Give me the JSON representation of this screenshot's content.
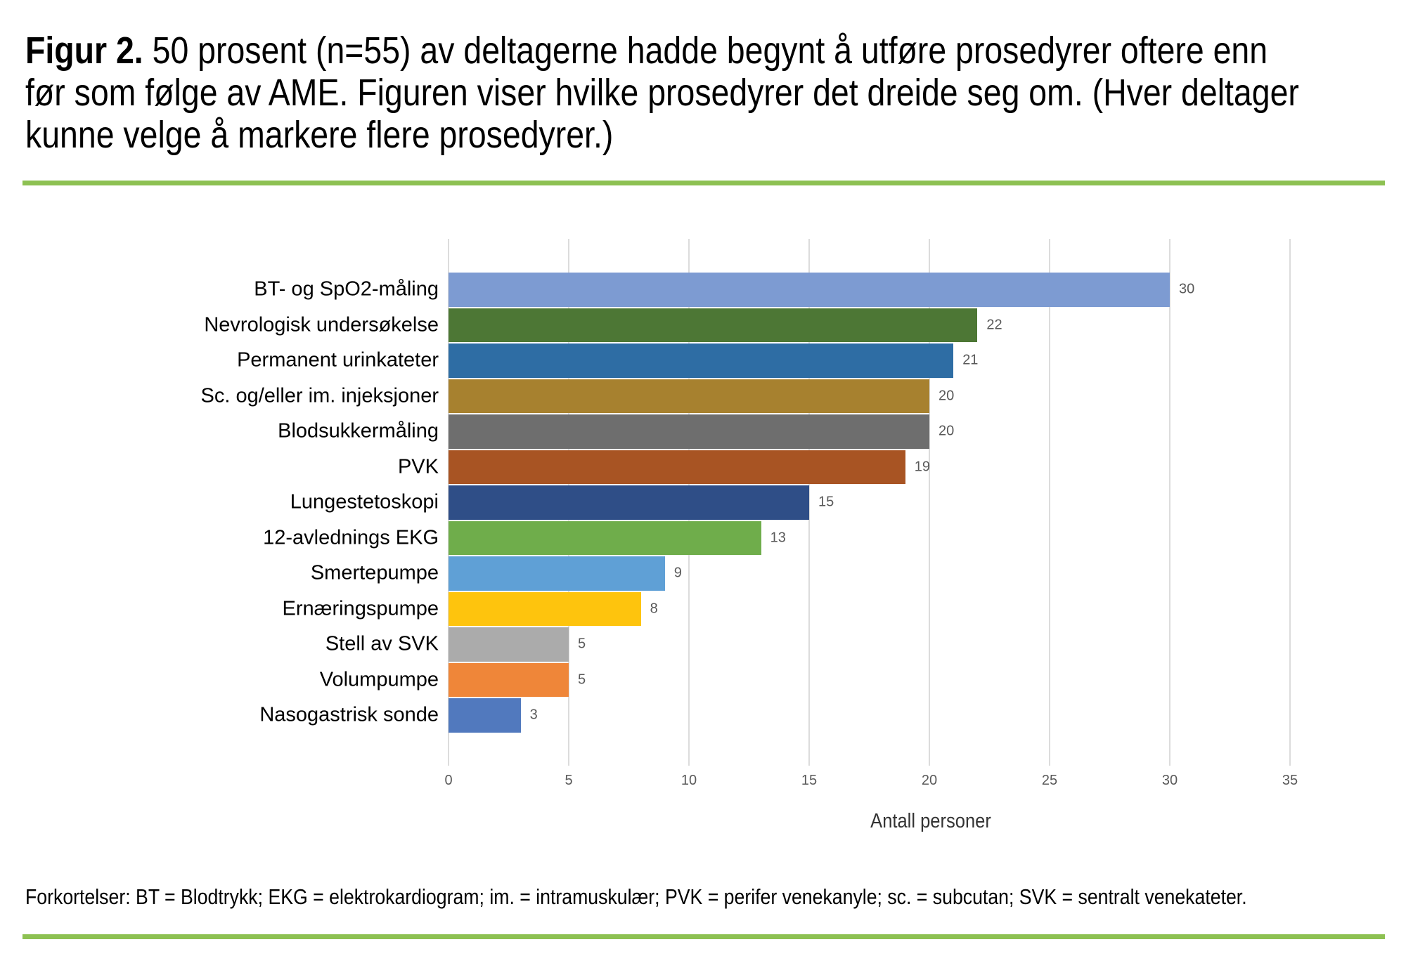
{
  "figure": {
    "caption_label": "Figur 2.",
    "caption_line1": "50 prosent (n=55) av deltagerne hadde begynt å utføre prosedyrer oftere enn",
    "caption_line2": "før som følge av AME. Figuren viser hvilke prosedyrer det dreide seg om. (Hver deltager",
    "caption_line3": "kunne velge å markere flere prosedyrer.)",
    "footnote": "Forkortelser: BT = Blodtrykk; EKG = elektrokardiogram; im. = intramuskulær; PVK = perifer venekanyle; sc. = subcutan; SVK = sentralt venekateter.",
    "accent_color": "#8DC152"
  },
  "chart_data": {
    "type": "bar",
    "orientation": "horizontal",
    "categories": [
      "BT- og SpO2-måling",
      "Nevrologisk undersøkelse",
      "Permanent urinkateter",
      "Sc. og/eller im. injeksjoner",
      "Blodsukkermåling",
      "PVK",
      "Lungestetoskopi",
      "12-avlednings EKG",
      "Smertepumpe",
      "Ernæringspumpe",
      "Stell av SVK",
      "Volumpumpe",
      "Nasogastrisk sonde"
    ],
    "values": [
      30,
      22,
      21,
      20,
      20,
      19,
      15,
      13,
      9,
      8,
      5,
      5,
      3
    ],
    "bar_colors": [
      "#7D9BD2",
      "#4D7735",
      "#2E6DA4",
      "#A7812F",
      "#6E6E6E",
      "#A85423",
      "#2F4E87",
      "#6FAD4B",
      "#5FA0D6",
      "#FEC40D",
      "#ABABAB",
      "#EF8639",
      "#5179BE"
    ],
    "xlabel": "Antall personer",
    "xlim": [
      0,
      35
    ],
    "xticks": [
      0,
      5,
      10,
      15,
      20,
      25,
      30,
      35
    ],
    "grid": true,
    "gridline_color": "#DCDCDC",
    "value_label_color": "#595959",
    "tick_label_color": "#595959",
    "value_labels_shown": true,
    "legend": "none"
  }
}
